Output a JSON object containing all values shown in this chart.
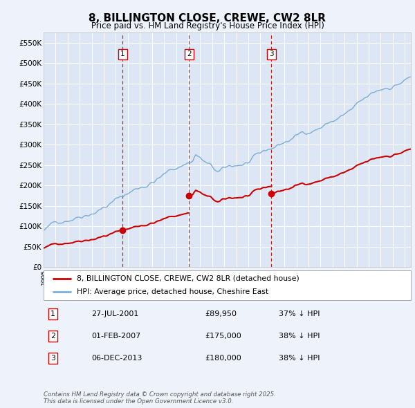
{
  "title": "8, BILLINGTON CLOSE, CREWE, CW2 8LR",
  "subtitle": "Price paid vs. HM Land Registry's House Price Index (HPI)",
  "background_color": "#eef2fb",
  "plot_bg_color": "#dde6f5",
  "ylim": [
    0,
    575000
  ],
  "yticks": [
    0,
    50000,
    100000,
    150000,
    200000,
    250000,
    300000,
    350000,
    400000,
    450000,
    500000,
    550000
  ],
  "sales": [
    {
      "date_num": 2001.57,
      "price": 89950,
      "label": "1"
    },
    {
      "date_num": 2007.08,
      "price": 175000,
      "label": "2"
    },
    {
      "date_num": 2013.92,
      "price": 180000,
      "label": "3"
    }
  ],
  "vline_color": "#cc0000",
  "sale_marker_color": "#cc0000",
  "legend_entries": [
    "8, BILLINGTON CLOSE, CREWE, CW2 8LR (detached house)",
    "HPI: Average price, detached house, Cheshire East"
  ],
  "legend_line_colors": [
    "#cc0000",
    "#7aadd4"
  ],
  "table_rows": [
    {
      "num": "1",
      "date": "27-JUL-2001",
      "price": "£89,950",
      "hpi": "37% ↓ HPI"
    },
    {
      "num": "2",
      "date": "01-FEB-2007",
      "price": "£175,000",
      "hpi": "38% ↓ HPI"
    },
    {
      "num": "3",
      "date": "06-DEC-2013",
      "price": "£180,000",
      "hpi": "38% ↓ HPI"
    }
  ],
  "footnote": "Contains HM Land Registry data © Crown copyright and database right 2025.\nThis data is licensed under the Open Government Licence v3.0.",
  "hpi_line_color": "#7aadd4",
  "sale_line_color": "#cc0000",
  "xmin": 1995.0,
  "xmax": 2025.5
}
